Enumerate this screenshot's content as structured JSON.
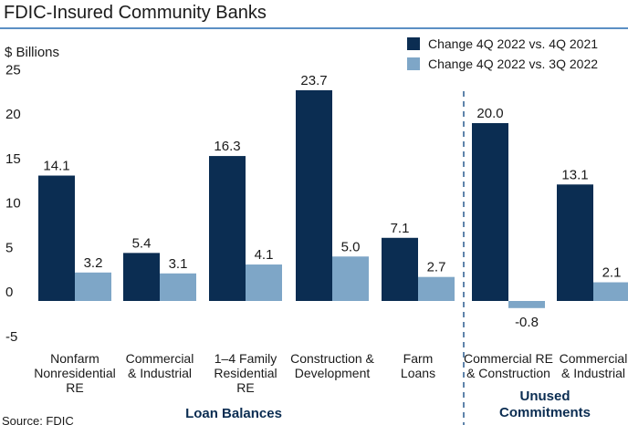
{
  "title": "FDIC-Insured Community Banks",
  "source": "Source: FDIC",
  "colors": {
    "dark": "#0b2d52",
    "light": "#7ea6c7",
    "divider": "#2a5c8f",
    "rule": "#5b8fc4"
  },
  "chart_data": {
    "type": "bar",
    "ylabel": "$ Billions",
    "ylim": [
      -5,
      25
    ],
    "yticks": [
      -5,
      0,
      5,
      10,
      15,
      20,
      25
    ],
    "grid": false,
    "legend_position": "top-right",
    "series": [
      {
        "name": "Change 4Q 2022 vs. 4Q 2021",
        "values": [
          14.1,
          5.4,
          16.3,
          23.7,
          7.1,
          20.0,
          13.1
        ]
      },
      {
        "name": "Change 4Q 2022 vs. 3Q 2022",
        "values": [
          3.2,
          3.1,
          4.1,
          5.0,
          2.7,
          -0.8,
          2.1
        ]
      }
    ],
    "value_labels": [
      [
        "14.1",
        "5.4",
        "16.3",
        "23.7",
        "7.1",
        "20.0",
        "13.1"
      ],
      [
        "3.2",
        "3.1",
        "4.1",
        "5.0",
        "2.7",
        "-0.8",
        "2.1"
      ]
    ],
    "categories": [
      [
        "Nonfarm",
        "Nonresidential",
        "RE"
      ],
      [
        "Commercial",
        "& Industrial"
      ],
      [
        "1–4 Family",
        "Residential",
        "RE"
      ],
      [
        "Construction &",
        "Development"
      ],
      [
        "Farm",
        "Loans"
      ],
      [
        "Commercial RE",
        "& Construction"
      ],
      [
        "Commercial",
        "& Industrial"
      ]
    ],
    "groups": [
      {
        "label": [
          "Loan Balances"
        ],
        "categories": [
          0,
          1,
          2,
          3,
          4
        ]
      },
      {
        "label": [
          "Unused",
          "Commitments"
        ],
        "categories": [
          5,
          6
        ]
      }
    ]
  }
}
